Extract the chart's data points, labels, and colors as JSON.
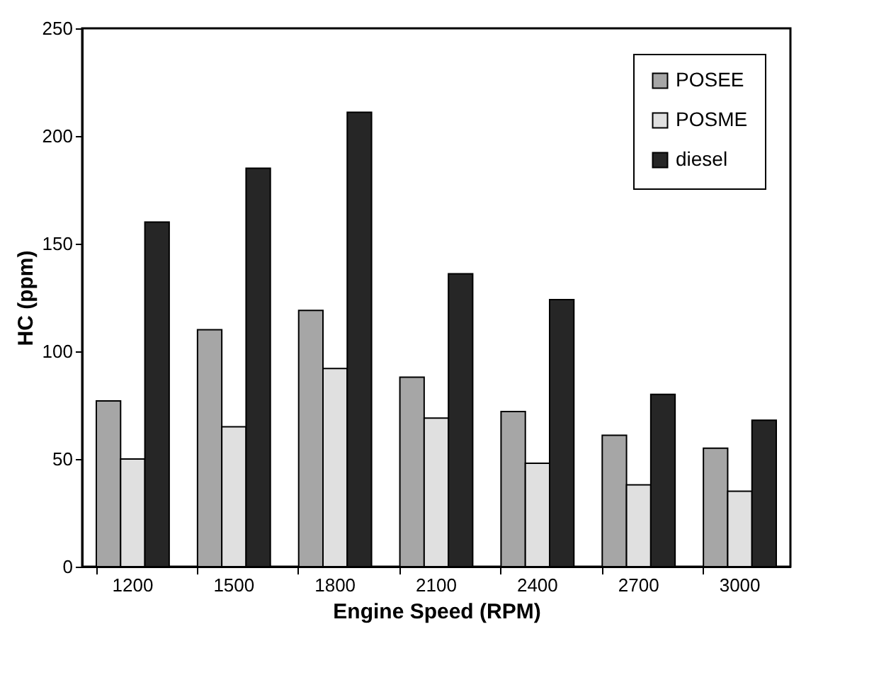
{
  "chart_data": {
    "type": "bar",
    "xlabel": "Engine Speed (RPM)",
    "ylabel": "HC (ppm)",
    "categories": [
      "1200",
      "1500",
      "1800",
      "2100",
      "2400",
      "2700",
      "3000"
    ],
    "series": [
      {
        "name": "POSEE",
        "color": "#a6a6a6",
        "values": [
          77,
          110,
          119,
          88,
          72,
          61,
          55
        ]
      },
      {
        "name": "POSME",
        "color": "#e0e0e0",
        "values": [
          50,
          65,
          92,
          69,
          48,
          38,
          35
        ]
      },
      {
        "name": "diesel",
        "color": "#262626",
        "values": [
          160,
          185,
          211,
          136,
          124,
          80,
          68
        ]
      }
    ],
    "ylim": [
      0,
      250
    ],
    "yticks": [
      0,
      50,
      100,
      150,
      200,
      250
    ],
    "grid": false,
    "legend": "top right"
  }
}
